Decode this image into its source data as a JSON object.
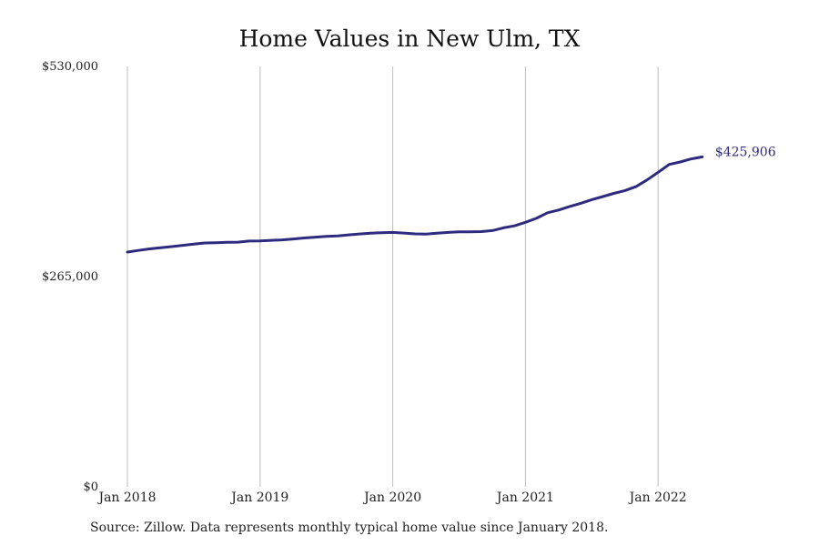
{
  "title": "Home Values in New Ulm, TX",
  "source": "Source: Zillow. Data represents monthly typical home value since January 2018.",
  "colors": {
    "line": "#2e2a7e",
    "grid": "#bdbdbd",
    "text": "#222222"
  },
  "chart_data": {
    "type": "line",
    "title": "Home Values in New Ulm, TX",
    "xlabel": "",
    "ylabel": "",
    "grid": "vertical",
    "ylim": [
      0,
      530000
    ],
    "yticks": [
      0,
      265000,
      530000
    ],
    "ytick_labels": [
      "$0",
      "$265,000",
      "$530,000"
    ],
    "xticks": [
      "Jan 2018",
      "Jan 2019",
      "Jan 2020",
      "Jan 2021",
      "Jan 2022"
    ],
    "end_label": "$425,906",
    "series": [
      {
        "x": [
          "Jan 2018",
          "Feb 2018",
          "Mar 2018",
          "Apr 2018",
          "May 2018",
          "Jun 2018",
          "Jul 2018",
          "Aug 2018",
          "Sep 2018",
          "Oct 2018",
          "Nov 2018",
          "Dec 2018",
          "Jan 2019",
          "Feb 2019",
          "Mar 2019",
          "Apr 2019",
          "May 2019",
          "Jun 2019",
          "Jul 2019",
          "Aug 2019",
          "Sep 2019",
          "Oct 2019",
          "Nov 2019",
          "Dec 2019",
          "Jan 2020",
          "Feb 2020",
          "Mar 2020",
          "Apr 2020",
          "May 2020",
          "Jun 2020",
          "Jul 2020",
          "Aug 2020",
          "Sep 2020",
          "Oct 2020",
          "Nov 2020",
          "Dec 2020",
          "Jan 2021",
          "Feb 2021",
          "Mar 2021",
          "Apr 2021",
          "May 2021",
          "Jun 2021",
          "Jul 2021",
          "Aug 2021",
          "Sep 2021",
          "Oct 2021",
          "Nov 2021",
          "Dec 2021",
          "Jan 2022",
          "Feb 2022",
          "Mar 2022",
          "Apr 2022",
          "May 2022"
        ],
        "values": [
          296000,
          298000,
          300000,
          301500,
          302800,
          304500,
          306000,
          307500,
          307800,
          308300,
          308500,
          309800,
          310000,
          310800,
          311300,
          312500,
          313700,
          314800,
          315700,
          316300,
          317700,
          318800,
          319800,
          320300,
          320800,
          320000,
          318900,
          318700,
          319700,
          320800,
          321500,
          321600,
          321800,
          323000,
          326500,
          329000,
          333500,
          338500,
          345500,
          349000,
          353500,
          357500,
          362000,
          366000,
          370000,
          373500,
          378500,
          387000,
          396500,
          406500,
          409500,
          413500,
          416000
        ]
      }
    ]
  }
}
